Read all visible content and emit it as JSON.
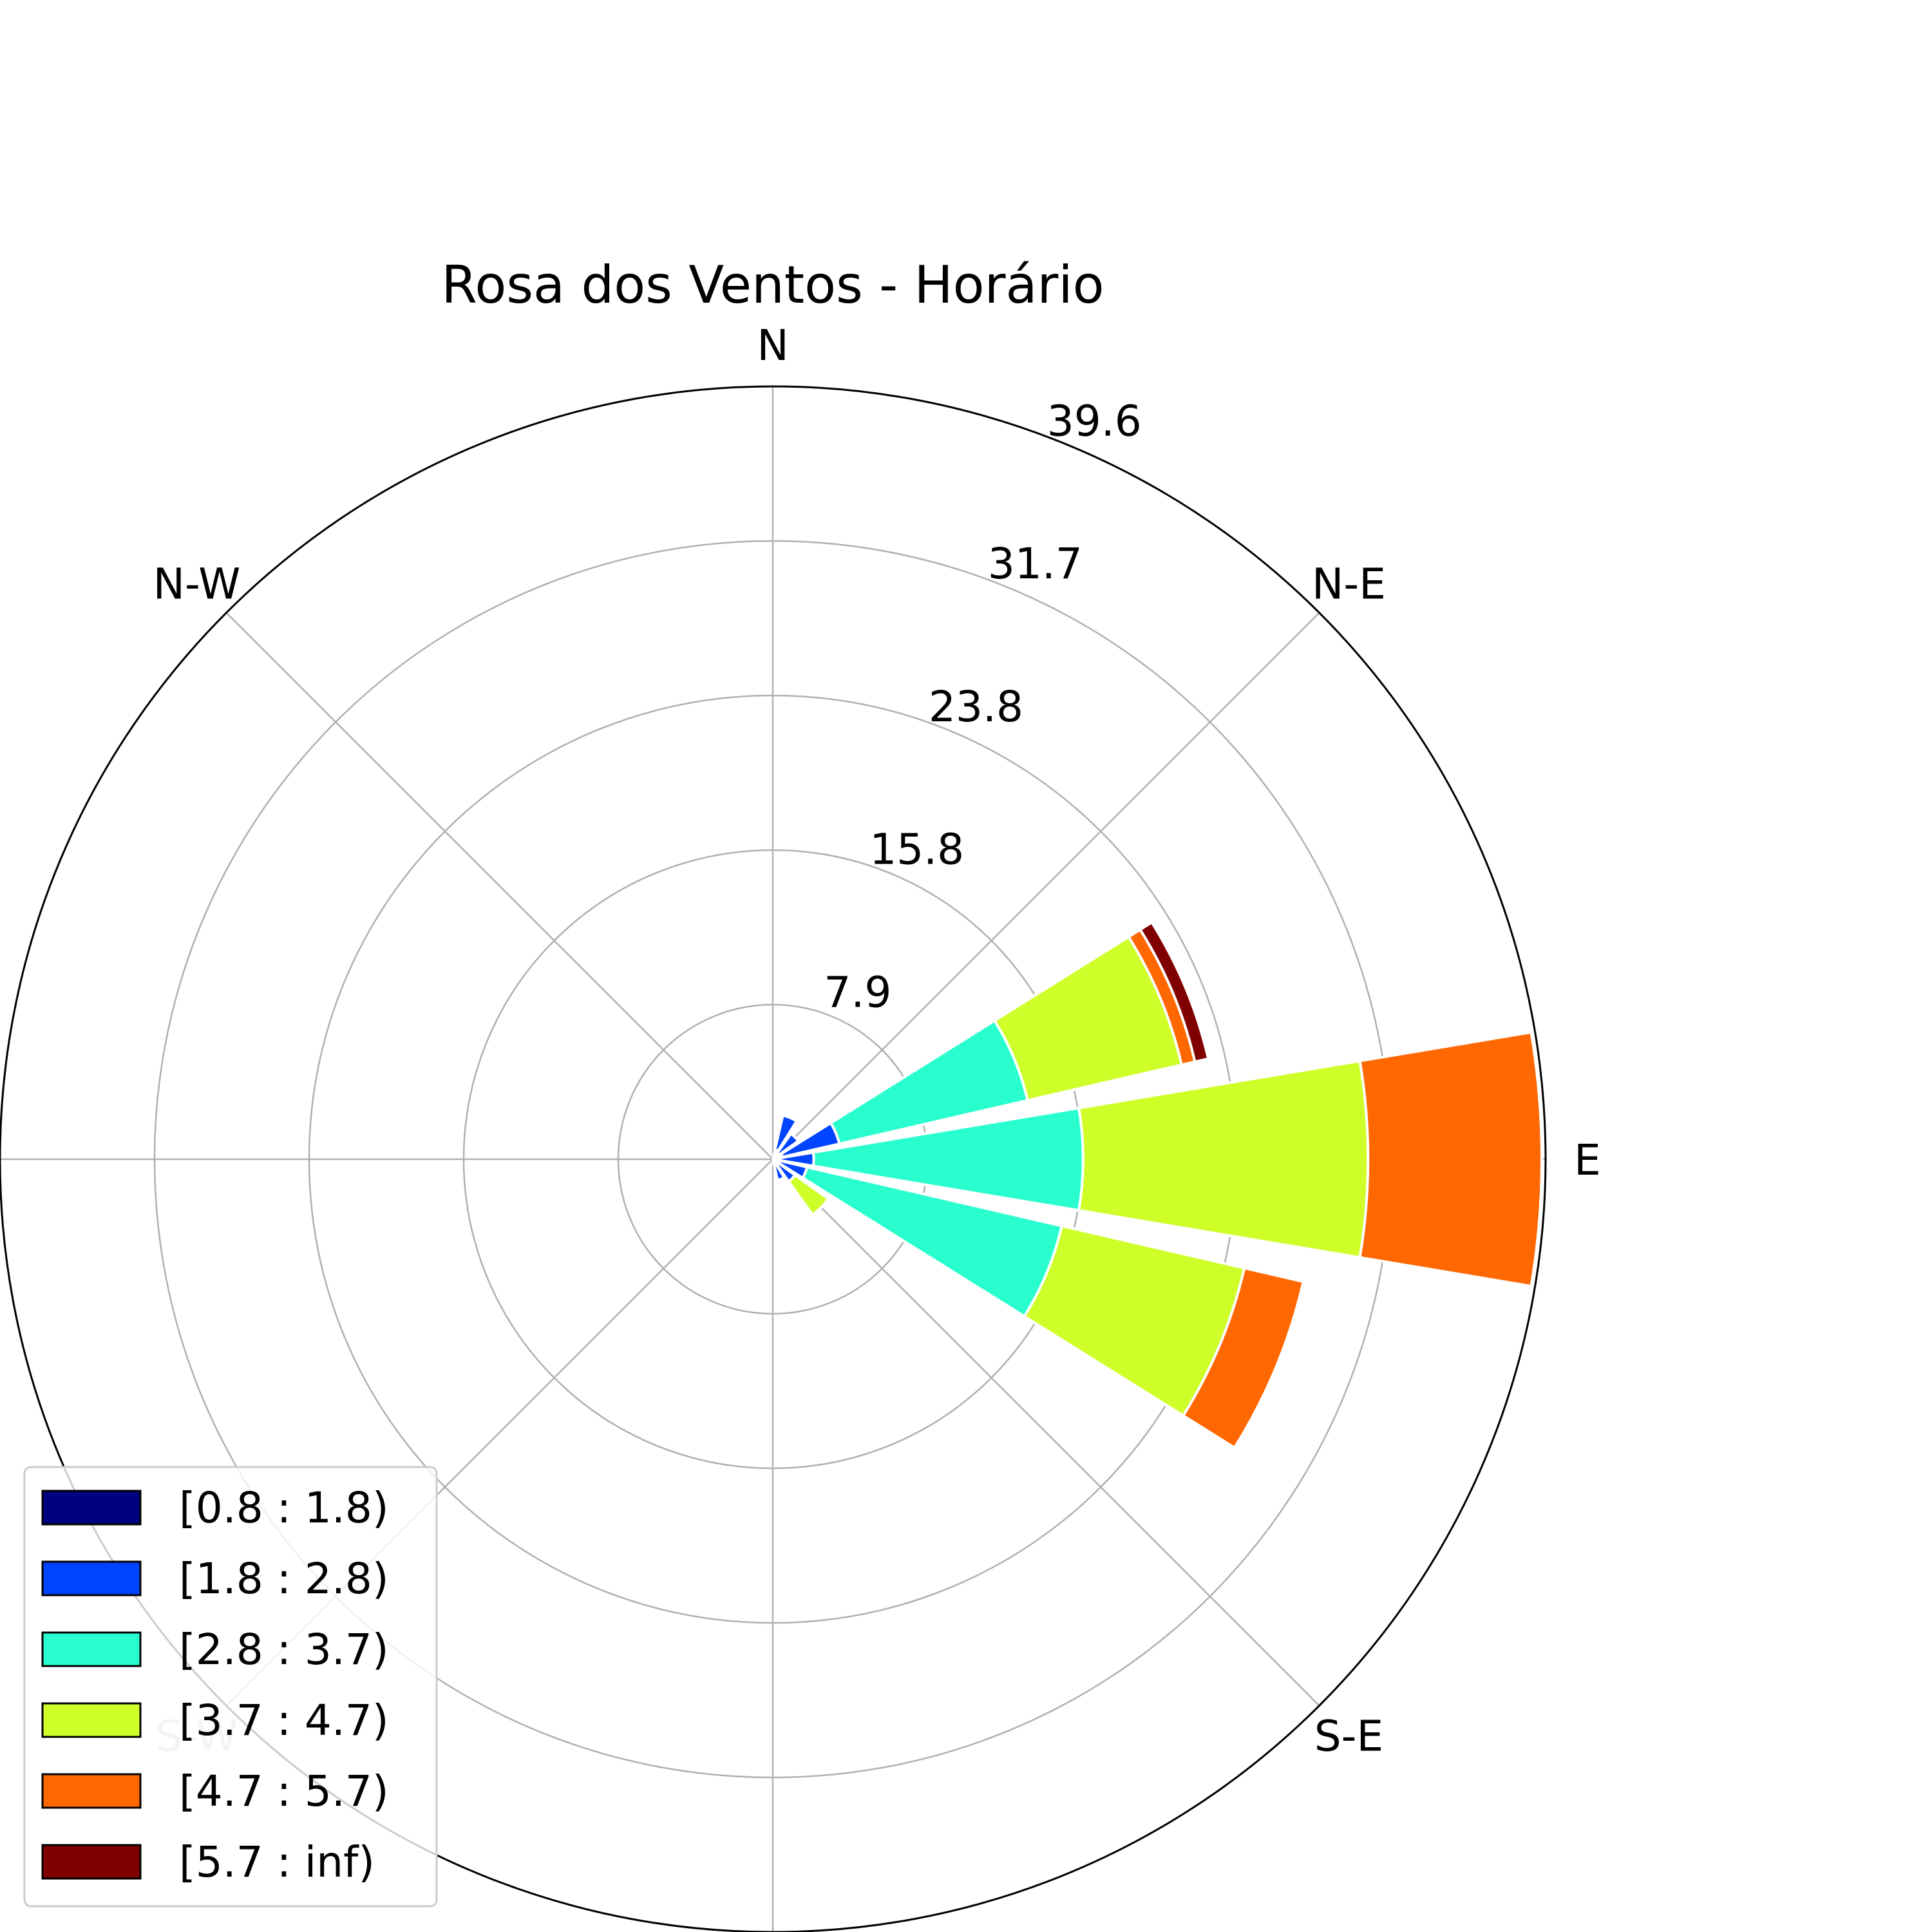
{
  "chart_data": {
    "type": "windrose",
    "title": "Rosa dos Ventos - Horário",
    "direction_labels": [
      {
        "label": "N",
        "angle": 0
      },
      {
        "label": "N-E",
        "angle": 45
      },
      {
        "label": "E",
        "angle": 90
      },
      {
        "label": "S-E",
        "angle": 135
      },
      {
        "label": "S-W",
        "angle": 225
      },
      {
        "label": "N-W",
        "angle": 315
      }
    ],
    "radial_ticks": [
      "7.9",
      "15.8",
      "23.8",
      "31.7",
      "39.6"
    ],
    "rmax": 39.6,
    "grid": true,
    "legend_position": "lower-left",
    "bins": [
      {
        "label": "[0.8 : 1.8)",
        "color": "#000080"
      },
      {
        "label": "[1.8 : 2.8)",
        "color": "#0044ff"
      },
      {
        "label": "[2.8 : 3.7)",
        "color": "#29ffce"
      },
      {
        "label": "[3.7 : 4.7)",
        "color": "#ceff29"
      },
      {
        "label": "[4.7 : 5.7)",
        "color": "#ff6800"
      },
      {
        "label": "[5.7 : inf)",
        "color": "#800000"
      }
    ],
    "sectors": [
      {
        "direction": 22.5,
        "values": [
          0.5,
          1.8,
          0.0,
          0.0,
          0.0,
          0.0
        ]
      },
      {
        "direction": 45,
        "values": [
          0.4,
          1.2,
          0.0,
          0.0,
          0.0,
          0.0
        ]
      },
      {
        "direction": 67.5,
        "values": [
          0.5,
          3.0,
          9.9,
          8.1,
          0.7,
          0.7
        ]
      },
      {
        "direction": 90,
        "values": [
          0.3,
          1.8,
          13.8,
          14.6,
          8.9,
          0.0
        ]
      },
      {
        "direction": 112.5,
        "values": [
          0.3,
          1.5,
          13.4,
          9.6,
          3.1,
          0.0
        ]
      },
      {
        "direction": 135,
        "values": [
          0.3,
          1.1,
          0.0,
          2.1,
          0.0,
          0.0
        ]
      },
      {
        "direction": 157.5,
        "values": [
          0.3,
          0.8,
          0.0,
          0.0,
          0.0,
          0.0
        ]
      }
    ],
    "sector_width_deg": 19
  }
}
